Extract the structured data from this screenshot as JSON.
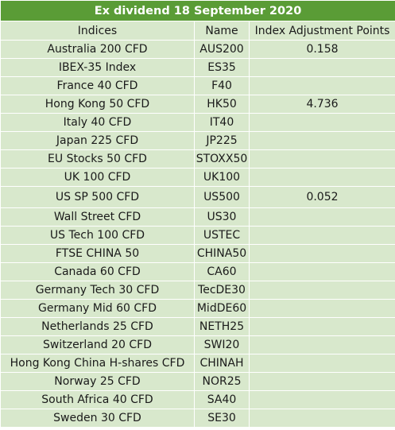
{
  "title": "Ex dividend 18 September 2020",
  "headers": [
    "Indices",
    "Name",
    "Index Adjustment Points"
  ],
  "rows": [
    [
      "Australia 200 CFD",
      "AUS200",
      "0.158"
    ],
    [
      "IBEX-35 Index",
      "ES35",
      ""
    ],
    [
      "France 40 CFD",
      "F40",
      ""
    ],
    [
      "Hong Kong 50 CFD",
      "HK50",
      "4.736"
    ],
    [
      "Italy 40 CFD",
      "IT40",
      ""
    ],
    [
      "Japan 225 CFD",
      "JP225",
      ""
    ],
    [
      "EU Stocks 50 CFD",
      "STOXX50",
      ""
    ],
    [
      "UK 100 CFD",
      "UK100",
      ""
    ],
    [
      "US SP 500 CFD",
      "US500",
      "0.052"
    ],
    [
      "Wall Street CFD",
      "US30",
      ""
    ],
    [
      "US Tech 100 CFD",
      "USTEC",
      ""
    ],
    [
      "FTSE CHINA 50",
      "CHINA50",
      ""
    ],
    [
      "Canada 60 CFD",
      "CA60",
      ""
    ],
    [
      "Germany Tech 30 CFD",
      "TecDE30",
      ""
    ],
    [
      "Germany Mid 60 CFD",
      "MidDE60",
      ""
    ],
    [
      "Netherlands 25 CFD",
      "NETH25",
      ""
    ],
    [
      "Switzerland 20 CFD",
      "SWI20",
      ""
    ],
    [
      "Hong Kong China H-shares CFD",
      "CHINAH",
      ""
    ],
    [
      "Norway 25 CFD",
      "NOR25",
      ""
    ],
    [
      "South Africa 40 CFD",
      "SA40",
      ""
    ],
    [
      "Sweden 30 CFD",
      "SE30",
      ""
    ]
  ],
  "colors": {
    "title_bg": "#5a9c36",
    "cell_bg": "#d8e8cc",
    "title_text": "#ffffff"
  }
}
